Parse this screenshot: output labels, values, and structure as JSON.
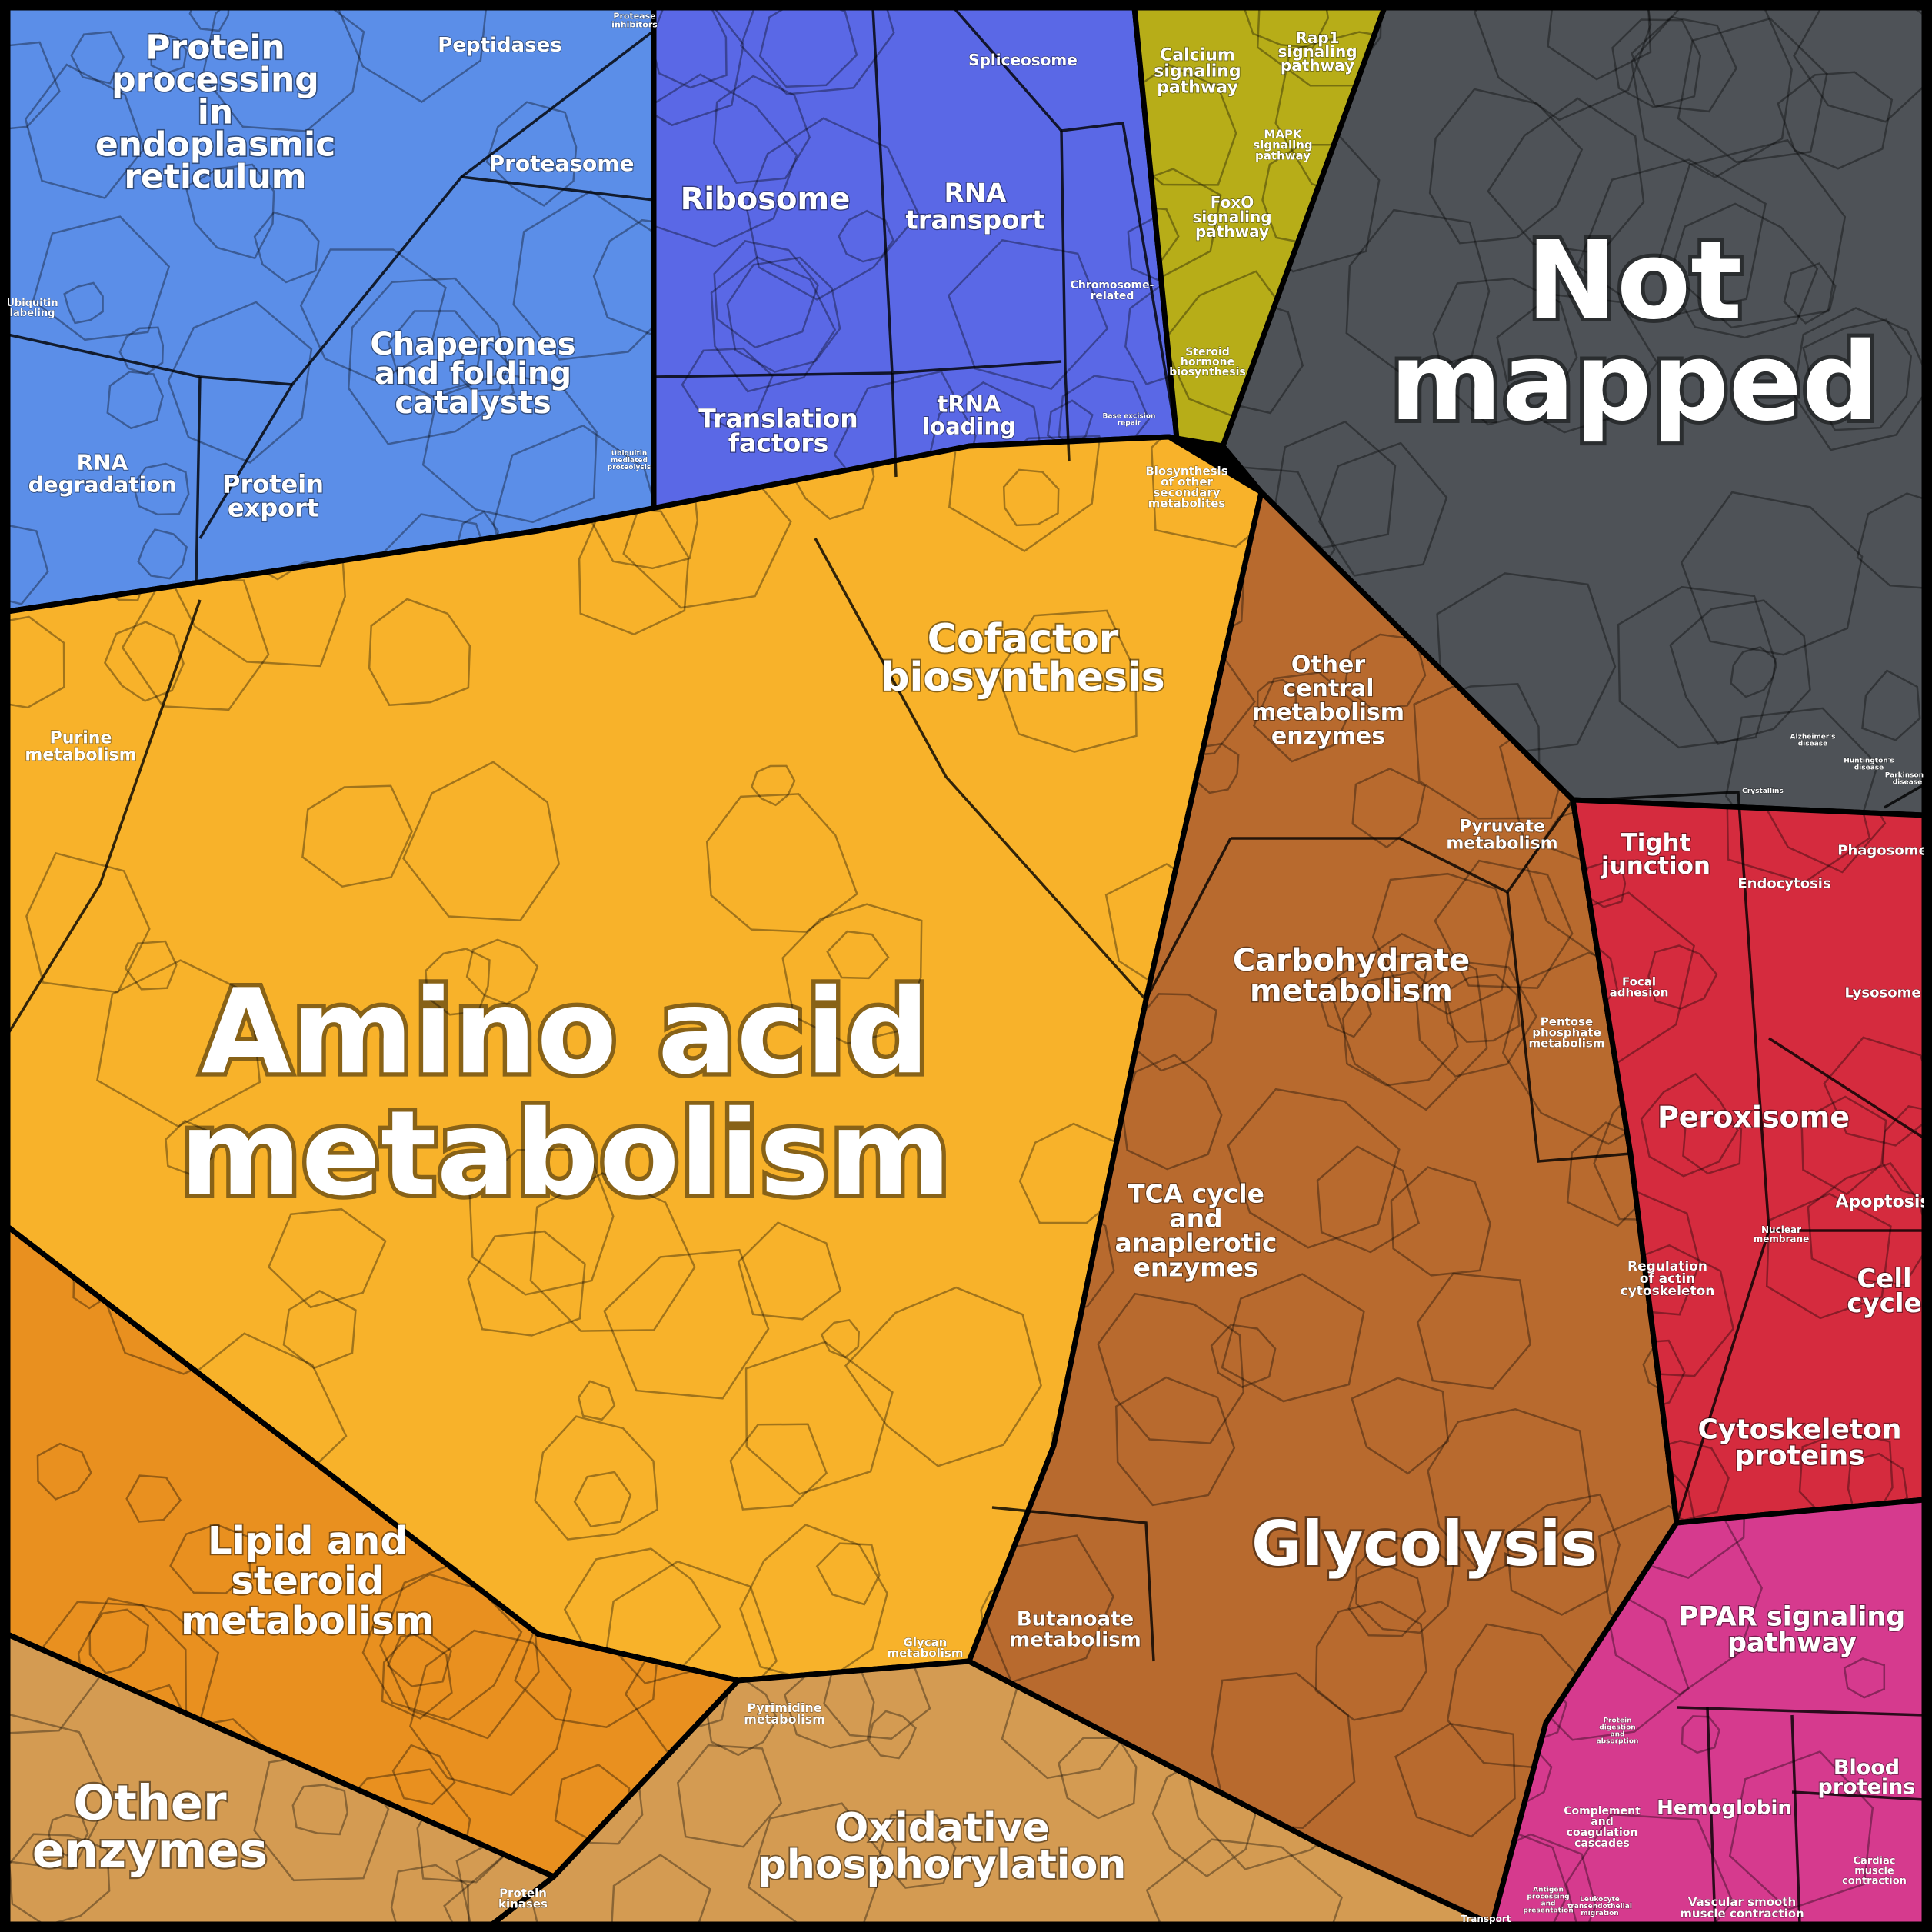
{
  "colors": {
    "blue": "#5b8ee8",
    "indigo": "#5a68e6",
    "olive": "#b7ad18",
    "gray": "#4e5257",
    "amber": "#f8b22a",
    "orange": "#e9901f",
    "brown": "#b86a2e",
    "tan": "#d49b52",
    "red": "#d52b3e",
    "magenta": "#d63a8e"
  },
  "labels": {
    "protein_processing_er": "Protein\nprocessing\nin\nendoplasmic\nreticulum",
    "peptidases": "Peptidases",
    "protease_inhibitors": "Protease\ninhibitors",
    "proteasome": "Proteasome",
    "chaperones": "Chaperones\nand folding\ncatalysts",
    "rna_degradation": "RNA\ndegradation",
    "protein_export": "Protein\nexport",
    "ubiquitin_labeling": "Ubiquitin\nlabeling",
    "ubiquitin_proteolysis": "Ubiquitin\nmediated\nproteolysis",
    "spliceosome": "Spliceosome",
    "ribosome": "Ribosome",
    "rna_transport": "RNA\ntransport",
    "chromosome_related": "Chromosome-\nrelated",
    "translation_factors": "Translation\nfactors",
    "trna_loading": "tRNA\nloading",
    "base_excision_repair": "Base excision\nrepair",
    "calcium_signaling": "Calcium\nsignaling\npathway",
    "rap1_signaling": "Rap1\nsignaling\npathway",
    "mapk_signaling": "MAPK\nsignaling\npathway",
    "foxo_signaling": "FoxO\nsignaling\npathway",
    "steroid_hormone": "Steroid\nhormone\nbiosynthesis",
    "not_mapped": "Not\nmapped",
    "biosynthesis_secondary": "Biosynthesis\nof other\nsecondary\nmetabolites",
    "cofactor_biosynthesis": "Cofactor\nbiosynthesis",
    "purine_metabolism": "Purine\nmetabolism",
    "amino_acid_metabolism": "Amino acid\nmetabolism",
    "lipid_steroid": "Lipid and\nsteroid\nmetabolism",
    "glycan_metabolism": "Glycan\nmetabolism",
    "pyrimidine_metabolism": "Pyrimidine\nmetabolism",
    "other_enzymes": "Other\nenzymes",
    "oxidative_phosphorylation": "Oxidative\nphosphorylation",
    "protein_kinases": "Protein\nkinases",
    "other_central": "Other\ncentral\nmetabolism\nenzymes",
    "pyruvate_metabolism": "Pyruvate\nmetabolism",
    "carbohydrate_metabolism": "Carbohydrate\nmetabolism",
    "pentose_phosphate": "Pentose\nphosphate\nmetabolism",
    "tca_cycle": "TCA cycle\nand\nanaplerotic\nenzymes",
    "glycolysis": "Glycolysis",
    "butanoate_metabolism": "Butanoate\nmetabolism",
    "alzheimers": "Alzheimer's\ndisease",
    "huntingtons": "Huntington's\ndisease",
    "parkinsons": "Parkinson's\ndisease",
    "crystallins": "Crystallins",
    "tight_junction": "Tight\njunction",
    "phagosome": "Phagosome",
    "endocytosis": "Endocytosis",
    "lysosome": "Lysosome",
    "focal_adhesion": "Focal\nadhesion",
    "peroxisome": "Peroxisome",
    "apoptosis": "Apoptosis",
    "nuclear_membrane": "Nuclear\nmembrane",
    "regulation_actin": "Regulation\nof actin\ncytoskeleton",
    "cell_cycle": "Cell\ncycle",
    "cytoskeleton_proteins": "Cytoskeleton\nproteins",
    "ppar_signaling": "PPAR signaling\npathway",
    "protein_digestion": "Protein\ndigestion\nand\nabsorption",
    "complement_coagulation": "Complement\nand\ncoagulation\ncascades",
    "hemoglobin": "Hemoglobin",
    "blood_proteins": "Blood\nproteins",
    "cardiac_muscle": "Cardiac\nmuscle\ncontraction",
    "vascular_smooth_muscle": "Vascular smooth\nmuscle contraction",
    "antigen_processing": "Antigen\nprocessing\nand\npresentation",
    "leukocyte_migration": "Leukocyte\ntransendothelial\nmigration",
    "transport": "Transport"
  }
}
